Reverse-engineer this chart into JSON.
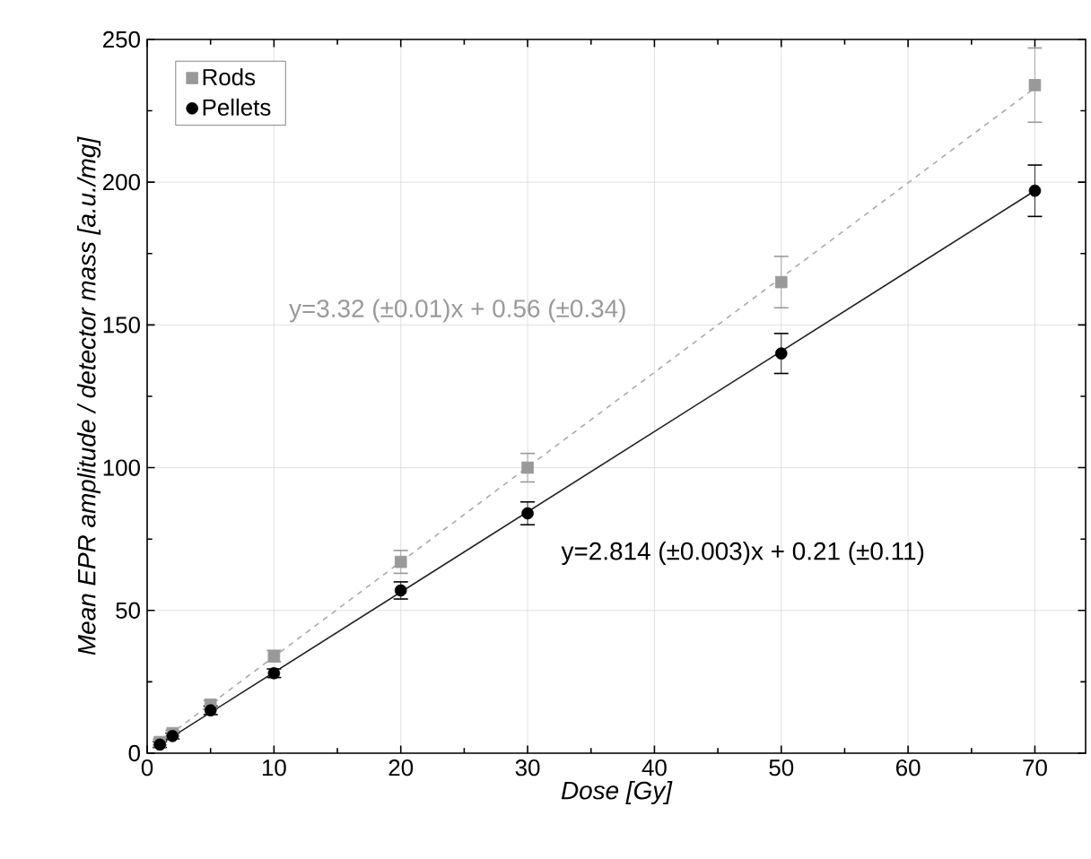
{
  "chart_data": {
    "type": "scatter",
    "xlabel": "Dose [Gy]",
    "ylabel": "Mean EPR amplitude / detector mass [a.u./mg]",
    "xlim": [
      0,
      74
    ],
    "ylim": [
      0,
      250
    ],
    "xticks": [
      0,
      10,
      20,
      30,
      40,
      50,
      60,
      70
    ],
    "yticks": [
      0,
      50,
      100,
      150,
      200,
      250
    ],
    "grid": true,
    "legend": "top left",
    "series": [
      {
        "name": "Rods",
        "marker": "square",
        "color": "#999999",
        "x": [
          1,
          2,
          5,
          10,
          20,
          30,
          50,
          70
        ],
        "values": [
          3.9,
          7,
          17,
          34,
          67,
          100,
          165,
          234
        ],
        "errors": [
          1,
          1,
          1.5,
          2,
          4,
          5,
          9,
          13
        ]
      },
      {
        "name": "Pellets",
        "marker": "circle",
        "color": "#000000",
        "x": [
          1,
          2,
          5,
          10,
          20,
          30,
          50,
          70
        ],
        "values": [
          3,
          6,
          15,
          28,
          57,
          84,
          140,
          197
        ],
        "errors": [
          1,
          1,
          1.5,
          1.5,
          3,
          4,
          7,
          9
        ]
      },
      {
        "type": "line",
        "line_style": "dashed",
        "marker": "none",
        "color": "#aaaaaa",
        "x": [
          1,
          70
        ],
        "values": [
          3.9,
          233
        ]
      },
      {
        "type": "line",
        "line_style": "solid",
        "marker": "none",
        "color": "#222222",
        "x": [
          1,
          70
        ],
        "values": [
          3,
          197
        ]
      }
    ],
    "annotations": [
      "y=3.32 (±0.01)x + 0.56 (±0.34)",
      "y=2.814 (±0.003)x + 0.21 (±0.11)"
    ]
  }
}
